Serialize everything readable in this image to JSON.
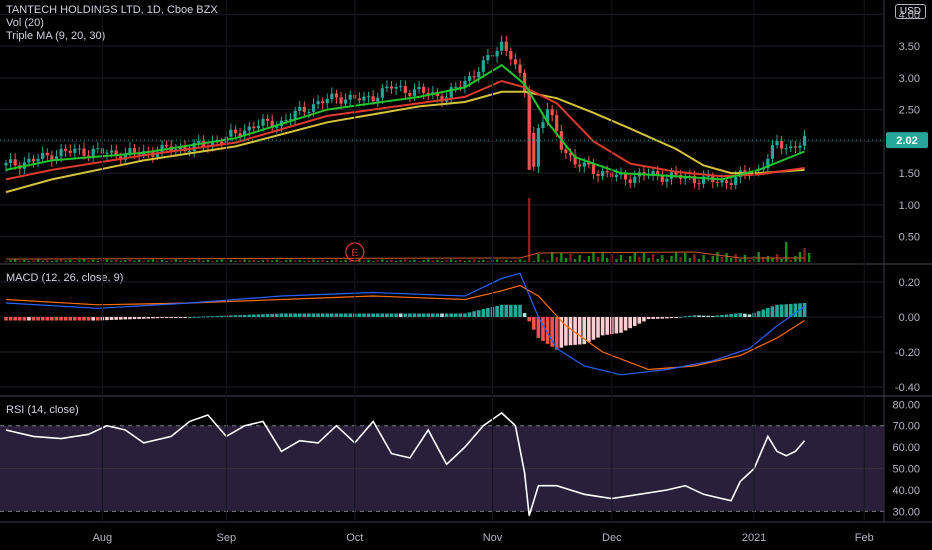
{
  "header": {
    "title": "TANTECH HOLDINGS LTD, 1D, Cboe BZX",
    "vol_label": "Vol (20)",
    "ma_label": "Triple MA (9, 20, 30)",
    "currency": "USD"
  },
  "colors": {
    "up": "#26a69a",
    "down": "#ef5350",
    "vol_up": "#1b8c1b",
    "ma_fast": "#22c32e",
    "ma_mid": "#e03a2f",
    "ma_slow": "#d4c23a",
    "macd_line": "#2962ff",
    "signal_line": "#ff6d00",
    "rsi_line": "#ffffff",
    "rsi_band": "#2a1f3a",
    "price_badge": "#26a69a"
  },
  "chart_data": [
    {
      "id": "price",
      "type": "candlestick",
      "title": "TANTECH HOLDINGS LTD, 1D, Cboe BZX",
      "ylim": [
        0.1,
        4.1
      ],
      "yticks": [
        "4.00",
        "3.50",
        "3.00",
        "2.50",
        "2.00",
        "1.50",
        "1.00",
        "0.50"
      ],
      "ytick_values": [
        4.0,
        3.5,
        3.0,
        2.5,
        2.0,
        1.5,
        1.0,
        0.5
      ],
      "last_price": "2.02",
      "last_value": 2.02,
      "earnings_marker": "E",
      "series_summary": {
        "points": [
          [
            0,
            1.62
          ],
          [
            6,
            1.7
          ],
          [
            12,
            1.83
          ],
          [
            18,
            1.85
          ],
          [
            24,
            1.8
          ],
          [
            30,
            1.82
          ],
          [
            36,
            1.88
          ],
          [
            42,
            1.92
          ],
          [
            48,
            2.05
          ],
          [
            54,
            2.25
          ],
          [
            60,
            2.3
          ],
          [
            66,
            2.55
          ],
          [
            72,
            2.7
          ],
          [
            78,
            2.65
          ],
          [
            84,
            2.85
          ],
          [
            90,
            2.78
          ],
          [
            96,
            2.7
          ],
          [
            100,
            2.95
          ],
          [
            104,
            3.2
          ],
          [
            108,
            3.55
          ],
          [
            110,
            3.35
          ],
          [
            113,
            2.8
          ],
          [
            115,
            1.6
          ],
          [
            116,
            2.2
          ],
          [
            118,
            2.5
          ],
          [
            121,
            1.95
          ],
          [
            124,
            1.65
          ],
          [
            128,
            1.55
          ],
          [
            134,
            1.42
          ],
          [
            140,
            1.48
          ],
          [
            146,
            1.44
          ],
          [
            152,
            1.4
          ],
          [
            156,
            1.35
          ],
          [
            160,
            1.45
          ],
          [
            164,
            1.55
          ],
          [
            166,
            1.75
          ],
          [
            168,
            1.95
          ],
          [
            171,
            1.9
          ],
          [
            174,
            2.02
          ]
        ]
      },
      "moving_averages": {
        "ma9": [
          [
            0,
            1.55
          ],
          [
            10,
            1.7
          ],
          [
            30,
            1.82
          ],
          [
            50,
            2.05
          ],
          [
            70,
            2.5
          ],
          [
            90,
            2.7
          ],
          [
            100,
            2.85
          ],
          [
            108,
            3.2
          ],
          [
            113,
            2.9
          ],
          [
            118,
            2.3
          ],
          [
            124,
            1.75
          ],
          [
            134,
            1.5
          ],
          [
            146,
            1.45
          ],
          [
            156,
            1.4
          ],
          [
            164,
            1.55
          ],
          [
            174,
            1.84
          ]
        ],
        "ma20": [
          [
            0,
            1.4
          ],
          [
            10,
            1.55
          ],
          [
            30,
            1.78
          ],
          [
            50,
            1.98
          ],
          [
            70,
            2.4
          ],
          [
            90,
            2.6
          ],
          [
            100,
            2.7
          ],
          [
            108,
            2.95
          ],
          [
            113,
            2.85
          ],
          [
            120,
            2.6
          ],
          [
            128,
            2.0
          ],
          [
            136,
            1.65
          ],
          [
            146,
            1.52
          ],
          [
            156,
            1.45
          ],
          [
            164,
            1.48
          ],
          [
            174,
            1.58
          ]
        ],
        "ma30": [
          [
            0,
            1.2
          ],
          [
            10,
            1.4
          ],
          [
            30,
            1.7
          ],
          [
            50,
            1.92
          ],
          [
            70,
            2.3
          ],
          [
            90,
            2.55
          ],
          [
            100,
            2.62
          ],
          [
            108,
            2.78
          ],
          [
            113,
            2.78
          ],
          [
            120,
            2.68
          ],
          [
            128,
            2.45
          ],
          [
            136,
            2.2
          ],
          [
            146,
            1.88
          ],
          [
            152,
            1.62
          ],
          [
            158,
            1.5
          ],
          [
            164,
            1.5
          ],
          [
            174,
            1.55
          ]
        ]
      },
      "volume_spike": [
        [
          114,
          1.17
        ],
        [
          115,
          0.35
        ]
      ]
    },
    {
      "id": "macd",
      "type": "line",
      "title": "MACD (12, 26, close, 9)",
      "ylim": [
        -0.44,
        0.28
      ],
      "yticks": [
        "0.20",
        "0.00",
        "-0.20",
        "-0.40"
      ],
      "ytick_values": [
        0.2,
        0.0,
        -0.2,
        -0.4
      ],
      "series": [
        {
          "values": [
            [
              0,
              0.08
            ],
            [
              20,
              0.05
            ],
            [
              40,
              0.08
            ],
            [
              60,
              0.12
            ],
            [
              80,
              0.14
            ],
            [
              100,
              0.12
            ],
            [
              108,
              0.22
            ],
            [
              112,
              0.25
            ],
            [
              116,
              0.0
            ],
            [
              120,
              -0.18
            ],
            [
              126,
              -0.28
            ],
            [
              134,
              -0.33
            ],
            [
              144,
              -0.3
            ],
            [
              154,
              -0.25
            ],
            [
              162,
              -0.18
            ],
            [
              168,
              -0.05
            ],
            [
              174,
              0.06
            ]
          ]
        },
        {
          "values": [
            [
              0,
              0.1
            ],
            [
              20,
              0.07
            ],
            [
              40,
              0.08
            ],
            [
              60,
              0.1
            ],
            [
              80,
              0.12
            ],
            [
              100,
              0.1
            ],
            [
              108,
              0.15
            ],
            [
              112,
              0.18
            ],
            [
              116,
              0.12
            ],
            [
              122,
              -0.05
            ],
            [
              130,
              -0.2
            ],
            [
              140,
              -0.3
            ],
            [
              150,
              -0.28
            ],
            [
              160,
              -0.22
            ],
            [
              168,
              -0.12
            ],
            [
              174,
              -0.02
            ]
          ]
        }
      ]
    },
    {
      "id": "rsi",
      "type": "line",
      "title": "RSI (14, close)",
      "ylim": [
        26,
        82
      ],
      "yticks": [
        "80.00",
        "70.00",
        "60.00",
        "50.00",
        "40.00",
        "30.00"
      ],
      "ytick_values": [
        80,
        70,
        60,
        50,
        40,
        30
      ],
      "band": [
        30,
        70
      ],
      "series": [
        {
          "values": [
            [
              0,
              68
            ],
            [
              6,
              65
            ],
            [
              12,
              64
            ],
            [
              18,
              66
            ],
            [
              22,
              70
            ],
            [
              26,
              68
            ],
            [
              30,
              62
            ],
            [
              36,
              65
            ],
            [
              40,
              72
            ],
            [
              44,
              75
            ],
            [
              48,
              65
            ],
            [
              52,
              70
            ],
            [
              56,
              72
            ],
            [
              60,
              58
            ],
            [
              64,
              63
            ],
            [
              68,
              62
            ],
            [
              72,
              70
            ],
            [
              76,
              62
            ],
            [
              80,
              72
            ],
            [
              84,
              57
            ],
            [
              88,
              55
            ],
            [
              92,
              68
            ],
            [
              96,
              52
            ],
            [
              100,
              60
            ],
            [
              104,
              70
            ],
            [
              108,
              76
            ],
            [
              111,
              70
            ],
            [
              113,
              48
            ],
            [
              114,
              28
            ],
            [
              116,
              42
            ],
            [
              120,
              42
            ],
            [
              126,
              38
            ],
            [
              132,
              36
            ],
            [
              138,
              38
            ],
            [
              144,
              40
            ],
            [
              148,
              42
            ],
            [
              152,
              38
            ],
            [
              156,
              36
            ],
            [
              158,
              35
            ],
            [
              160,
              44
            ],
            [
              163,
              50
            ],
            [
              166,
              65
            ],
            [
              168,
              58
            ],
            [
              170,
              56
            ],
            [
              172,
              58
            ],
            [
              174,
              63
            ]
          ]
        }
      ]
    }
  ],
  "xaxis": {
    "labels": [
      "Aug",
      "Sep",
      "Oct",
      "Nov",
      "Dec",
      "2021",
      "Feb"
    ],
    "label_values": [
      21,
      48,
      76,
      106,
      132,
      163,
      187
    ],
    "total_bars": 190
  }
}
